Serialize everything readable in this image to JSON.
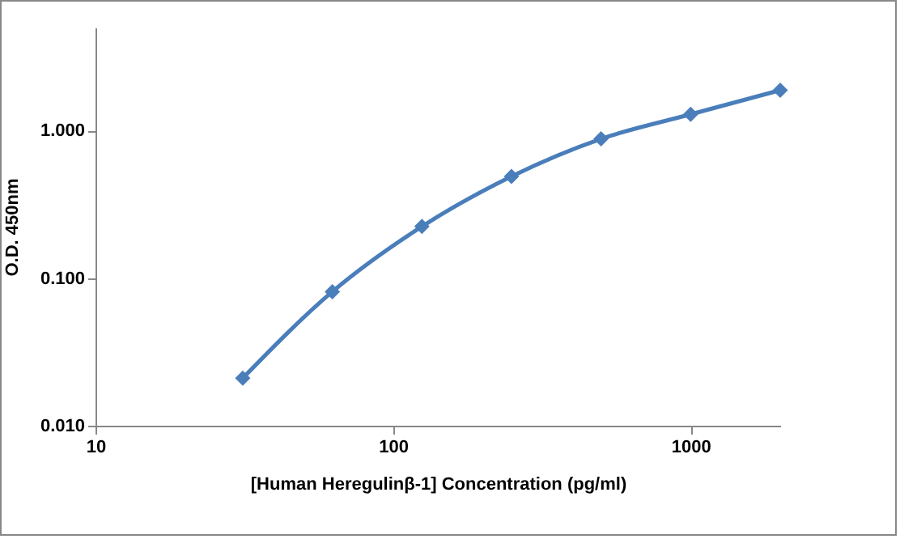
{
  "chart_data": {
    "type": "line",
    "xlabel": "[Human Heregulinβ-1] Concentration (pg/ml)",
    "ylabel": "O.D. 450nm",
    "x": [
      31.25,
      62.5,
      125,
      250,
      500,
      1000,
      2000
    ],
    "series": [
      {
        "color": "#4a7ebb",
        "values": [
          0.021,
          0.081,
          0.224,
          0.49,
          0.88,
          1.29,
          1.88
        ]
      }
    ],
    "log": "xy",
    "xlim": [
      10,
      2000
    ],
    "ylim": [
      0.01,
      5
    ],
    "xticks": [
      10,
      100,
      1000
    ],
    "yticks": [
      {
        "value": 0.01,
        "label": "0.010"
      },
      {
        "value": 0.1,
        "label": "0.100"
      },
      {
        "value": 1,
        "label": "1.000"
      }
    ],
    "marker": "diamond"
  }
}
